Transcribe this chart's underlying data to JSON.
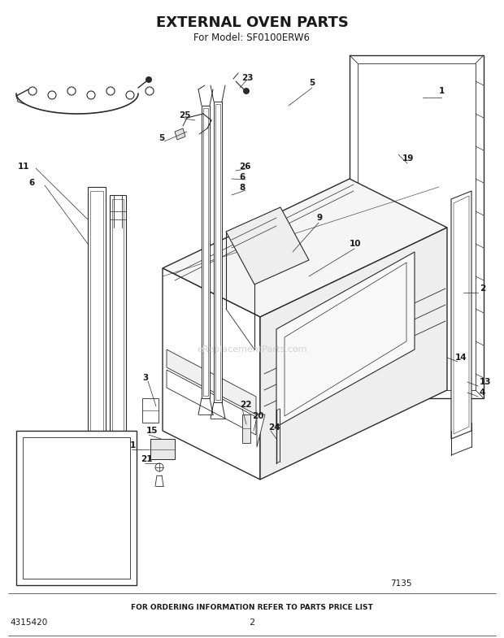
{
  "title": "EXTERNAL OVEN PARTS",
  "subtitle": "For Model: SF0100ERW6",
  "footer_text": "FOR ORDERING INFORMATION REFER TO PARTS PRICE LIST",
  "bottom_left": "4315420",
  "bottom_center": "2",
  "bottom_right_label": "7135",
  "background_color": "#ffffff",
  "title_fontsize": 13,
  "subtitle_fontsize": 8.5,
  "footer_fontsize": 6.5,
  "watermark": "eReplacementParts.com",
  "watermark_color": "#c8c8c8",
  "line_color": "#2a2a2a",
  "text_color": "#1a1a1a"
}
